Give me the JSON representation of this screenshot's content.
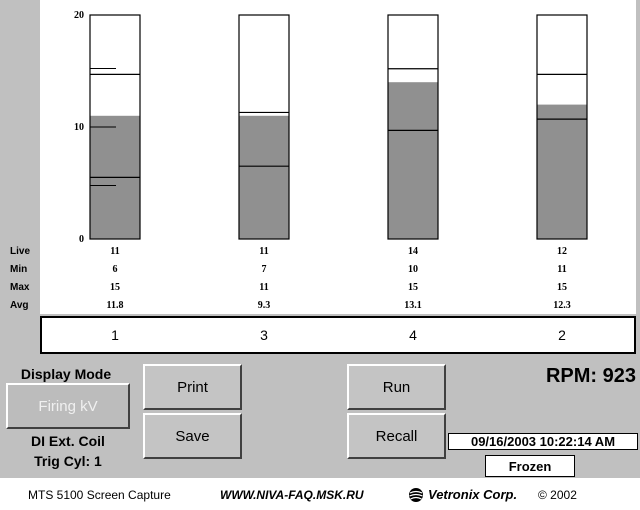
{
  "chart_data": {
    "type": "bar",
    "title": "",
    "xlabel": "",
    "ylabel": "",
    "ylim": [
      0,
      20
    ],
    "y_ticks": [
      "0",
      "10",
      "20"
    ],
    "grid": false,
    "categories": [
      "1",
      "3",
      "4",
      "2"
    ],
    "series": [
      {
        "name": "Live",
        "values": [
          11,
          11,
          14,
          12
        ]
      }
    ],
    "min": [
      6,
      7,
      10,
      11
    ],
    "max": [
      15,
      11,
      15,
      15
    ],
    "avg": [
      11.8,
      9.3,
      13.1,
      12.3
    ],
    "upper_marker": [
      14.7,
      11.3,
      15.2,
      14.7
    ],
    "lower_marker": [
      5.5,
      6.5,
      9.7,
      10.7
    ]
  },
  "colors": {
    "background": "#c0c0c0",
    "bar_fill": "#909090",
    "column_bg": "#ffffff",
    "panel": "#ffffff"
  },
  "rows": {
    "live": {
      "label": "Live",
      "values": [
        "11",
        "11",
        "14",
        "12"
      ]
    },
    "min": {
      "label": "Min",
      "values": [
        "6",
        "7",
        "10",
        "11"
      ]
    },
    "max": {
      "label": "Max",
      "values": [
        "15",
        "11",
        "15",
        "15"
      ]
    },
    "avg": {
      "label": "Avg",
      "values": [
        "11.8",
        "9.3",
        "13.1",
        "12.3"
      ]
    }
  },
  "cylinders": [
    "1",
    "3",
    "4",
    "2"
  ],
  "controls": {
    "display_mode_label": "Display Mode",
    "display_mode_value": "Firing kV",
    "coil_label": "DI Ext. Coil",
    "trig_label": "Trig Cyl: 1",
    "print_label": "Print",
    "save_label": "Save",
    "run_label": "Run",
    "recall_label": "Recall"
  },
  "status": {
    "rpm": "RPM: 923",
    "datetime": "09/16/2003 10:22:14 AM",
    "state": "Frozen"
  },
  "footer": {
    "caption": "MTS 5100 Screen Capture",
    "url": "WWW.NIVA-FAQ.MSK.RU",
    "brand": "Vetronix Corp.",
    "copyright": "© 2002",
    "logo_icon": "vetronix-globe-icon"
  }
}
